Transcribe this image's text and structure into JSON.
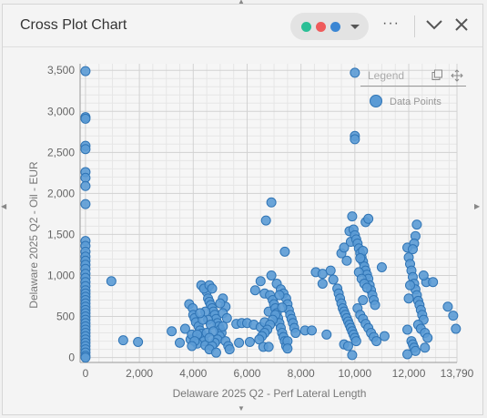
{
  "window": {
    "title": "Cross Plot Chart",
    "series_colors": [
      "#2bbf96",
      "#ef5b5b",
      "#3a86d4"
    ]
  },
  "legend": {
    "title": "Legend",
    "items": [
      {
        "label": "Data Points",
        "color": "#5b9bd5"
      }
    ]
  },
  "chart_data": {
    "type": "scatter",
    "xlabel": "Delaware 2025 Q2 - Perf Lateral Length",
    "ylabel": "Delaware 2025 Q2 - Oil - EUR",
    "xlim": [
      -200,
      13790
    ],
    "ylim": [
      -60,
      3580
    ],
    "x_ticks": [
      "0",
      "2,000",
      "4,000",
      "6,000",
      "8,000",
      "10,000",
      "12,000",
      "13,790"
    ],
    "x_tick_values": [
      0,
      2000,
      4000,
      6000,
      8000,
      10000,
      12000,
      13790
    ],
    "y_ticks": [
      "0",
      "500",
      "1,000",
      "1,500",
      "2,000",
      "2,500",
      "3,000",
      "3,500"
    ],
    "y_tick_values": [
      0,
      500,
      1000,
      1500,
      2000,
      2500,
      3000,
      3500
    ],
    "grid": true,
    "legend_position": "top-right",
    "series": [
      {
        "name": "Data Points",
        "points": [
          [
            0,
            3490
          ],
          [
            0,
            2930
          ],
          [
            0,
            2910
          ],
          [
            0,
            2580
          ],
          [
            0,
            2540
          ],
          [
            0,
            2260
          ],
          [
            0,
            2190
          ],
          [
            0,
            2090
          ],
          [
            0,
            1870
          ],
          [
            0,
            1420
          ],
          [
            0,
            1360
          ],
          [
            0,
            1290
          ],
          [
            0,
            1230
          ],
          [
            0,
            1180
          ],
          [
            0,
            1130
          ],
          [
            0,
            1080
          ],
          [
            0,
            1020
          ],
          [
            0,
            970
          ],
          [
            0,
            920
          ],
          [
            0,
            870
          ],
          [
            0,
            820
          ],
          [
            0,
            780
          ],
          [
            0,
            740
          ],
          [
            0,
            700
          ],
          [
            0,
            660
          ],
          [
            0,
            620
          ],
          [
            0,
            580
          ],
          [
            0,
            540
          ],
          [
            0,
            500
          ],
          [
            0,
            460
          ],
          [
            0,
            420
          ],
          [
            0,
            380
          ],
          [
            0,
            340
          ],
          [
            0,
            300
          ],
          [
            0,
            260
          ],
          [
            0,
            220
          ],
          [
            0,
            180
          ],
          [
            0,
            140
          ],
          [
            0,
            100
          ],
          [
            0,
            60
          ],
          [
            0,
            20
          ],
          [
            0,
            0
          ],
          [
            960,
            930
          ],
          [
            1400,
            210
          ],
          [
            1950,
            190
          ],
          [
            3200,
            320
          ],
          [
            3500,
            180
          ],
          [
            3700,
            350
          ],
          [
            3900,
            220
          ],
          [
            3950,
            280
          ],
          [
            3850,
            650
          ],
          [
            3980,
            600
          ],
          [
            4000,
            520
          ],
          [
            4050,
            480
          ],
          [
            4100,
            430
          ],
          [
            4200,
            380
          ],
          [
            4250,
            330
          ],
          [
            4300,
            290
          ],
          [
            4350,
            250
          ],
          [
            4400,
            200
          ],
          [
            4150,
            170
          ],
          [
            4450,
            150
          ],
          [
            4500,
            800
          ],
          [
            4550,
            720
          ],
          [
            4600,
            680
          ],
          [
            4650,
            640
          ],
          [
            4700,
            600
          ],
          [
            4750,
            560
          ],
          [
            4800,
            520
          ],
          [
            4850,
            470
          ],
          [
            4900,
            420
          ],
          [
            4950,
            380
          ],
          [
            5000,
            340
          ],
          [
            5050,
            300
          ],
          [
            4980,
            260
          ],
          [
            4900,
            220
          ],
          [
            4800,
            180
          ],
          [
            4700,
            140
          ],
          [
            4600,
            100
          ],
          [
            4850,
            60
          ],
          [
            4300,
            880
          ],
          [
            4400,
            840
          ],
          [
            4600,
            880
          ],
          [
            4700,
            840
          ],
          [
            5100,
            720
          ],
          [
            5200,
            620
          ],
          [
            5000,
            660
          ],
          [
            5100,
            540
          ],
          [
            4550,
            460
          ],
          [
            4450,
            560
          ],
          [
            4650,
            400
          ],
          [
            4350,
            460
          ],
          [
            4150,
            280
          ],
          [
            4050,
            200
          ],
          [
            3950,
            140
          ],
          [
            4250,
            540
          ],
          [
            4500,
            300
          ],
          [
            4750,
            320
          ],
          [
            4600,
            240
          ],
          [
            5100,
            380
          ],
          [
            5250,
            480
          ],
          [
            5200,
            200
          ],
          [
            5300,
            140
          ],
          [
            5350,
            100
          ],
          [
            5600,
            410
          ],
          [
            5800,
            420
          ],
          [
            6000,
            420
          ],
          [
            6250,
            400
          ],
          [
            5700,
            180
          ],
          [
            6100,
            190
          ],
          [
            6500,
            370
          ],
          [
            6650,
            430
          ],
          [
            6300,
            820
          ],
          [
            6500,
            930
          ],
          [
            6700,
            1670
          ],
          [
            6900,
            1890
          ],
          [
            6900,
            1000
          ],
          [
            6650,
            780
          ],
          [
            6800,
            560
          ],
          [
            6850,
            760
          ],
          [
            6950,
            700
          ],
          [
            7000,
            650
          ],
          [
            7050,
            600
          ],
          [
            7100,
            540
          ],
          [
            7150,
            480
          ],
          [
            7200,
            420
          ],
          [
            7250,
            360
          ],
          [
            7300,
            300
          ],
          [
            7350,
            250
          ],
          [
            7400,
            200
          ],
          [
            7450,
            140
          ],
          [
            7050,
            520
          ],
          [
            6950,
            460
          ],
          [
            6850,
            400
          ],
          [
            6750,
            340
          ],
          [
            6650,
            300
          ],
          [
            6550,
            260
          ],
          [
            6450,
            220
          ],
          [
            6600,
            130
          ],
          [
            7100,
            900
          ],
          [
            7250,
            830
          ],
          [
            7350,
            780
          ],
          [
            7450,
            720
          ],
          [
            7500,
            650
          ],
          [
            7550,
            580
          ],
          [
            7600,
            520
          ],
          [
            7650,
            470
          ],
          [
            7700,
            420
          ],
          [
            7750,
            360
          ],
          [
            7800,
            300
          ],
          [
            7500,
            200
          ],
          [
            7400,
            1290
          ],
          [
            7200,
            760
          ],
          [
            7300,
            610
          ],
          [
            6800,
            130
          ],
          [
            7500,
            110
          ],
          [
            8150,
            330
          ],
          [
            8400,
            330
          ],
          [
            8550,
            1040
          ],
          [
            8800,
            1020
          ],
          [
            8950,
            280
          ],
          [
            8800,
            900
          ],
          [
            9100,
            1060
          ],
          [
            9200,
            950
          ],
          [
            9350,
            840
          ],
          [
            9400,
            780
          ],
          [
            9450,
            720
          ],
          [
            9500,
            660
          ],
          [
            9550,
            600
          ],
          [
            9600,
            560
          ],
          [
            9650,
            520
          ],
          [
            9700,
            480
          ],
          [
            9750,
            440
          ],
          [
            9800,
            400
          ],
          [
            9850,
            360
          ],
          [
            9900,
            320
          ],
          [
            9950,
            280
          ],
          [
            10000,
            240
          ],
          [
            10050,
            200
          ],
          [
            9600,
            160
          ],
          [
            9750,
            140
          ],
          [
            9900,
            30
          ],
          [
            9500,
            1270
          ],
          [
            9600,
            1340
          ],
          [
            9700,
            1180
          ],
          [
            9800,
            1540
          ],
          [
            9850,
            1410
          ],
          [
            9900,
            1720
          ],
          [
            9950,
            1560
          ],
          [
            10000,
            1490
          ],
          [
            10050,
            1440
          ],
          [
            10100,
            1390
          ],
          [
            10150,
            1330
          ],
          [
            10200,
            1270
          ],
          [
            10250,
            1220
          ],
          [
            10300,
            1170
          ],
          [
            10350,
            1110
          ],
          [
            10400,
            1060
          ],
          [
            10450,
            1010
          ],
          [
            10500,
            960
          ],
          [
            10550,
            880
          ],
          [
            10600,
            820
          ],
          [
            10650,
            760
          ],
          [
            10700,
            700
          ],
          [
            10750,
            640
          ],
          [
            10000,
            3470
          ],
          [
            10000,
            2700
          ],
          [
            10000,
            2660
          ],
          [
            10400,
            1650
          ],
          [
            10500,
            1690
          ],
          [
            10150,
            1040
          ],
          [
            10250,
            960
          ],
          [
            10350,
            900
          ],
          [
            10450,
            850
          ],
          [
            10300,
            700
          ],
          [
            10100,
            600
          ],
          [
            10200,
            520
          ],
          [
            10300,
            470
          ],
          [
            10400,
            410
          ],
          [
            10500,
            360
          ],
          [
            10600,
            300
          ],
          [
            10700,
            250
          ],
          [
            10800,
            200
          ],
          [
            11100,
            260
          ],
          [
            11000,
            1100
          ],
          [
            10300,
            1300
          ],
          [
            10200,
            1210
          ],
          [
            11950,
            1340
          ],
          [
            12000,
            1220
          ],
          [
            12050,
            1140
          ],
          [
            12100,
            1060
          ],
          [
            12150,
            980
          ],
          [
            12200,
            900
          ],
          [
            12250,
            830
          ],
          [
            12300,
            760
          ],
          [
            12350,
            690
          ],
          [
            12400,
            640
          ],
          [
            12450,
            580
          ],
          [
            12500,
            520
          ],
          [
            12550,
            460
          ],
          [
            12300,
            1620
          ],
          [
            12250,
            1480
          ],
          [
            12200,
            1390
          ],
          [
            12150,
            1320
          ],
          [
            12050,
            880
          ],
          [
            12000,
            720
          ],
          [
            11950,
            340
          ],
          [
            12100,
            200
          ],
          [
            12150,
            160
          ],
          [
            12200,
            120
          ],
          [
            12250,
            80
          ],
          [
            11950,
            40
          ],
          [
            12350,
            400
          ],
          [
            12450,
            350
          ],
          [
            12600,
            300
          ],
          [
            12650,
            920
          ],
          [
            12550,
            1000
          ],
          [
            12700,
            240
          ],
          [
            12900,
            920
          ],
          [
            13450,
            620
          ],
          [
            13650,
            510
          ],
          [
            13750,
            350
          ],
          [
            12600,
            120
          ]
        ]
      }
    ]
  }
}
